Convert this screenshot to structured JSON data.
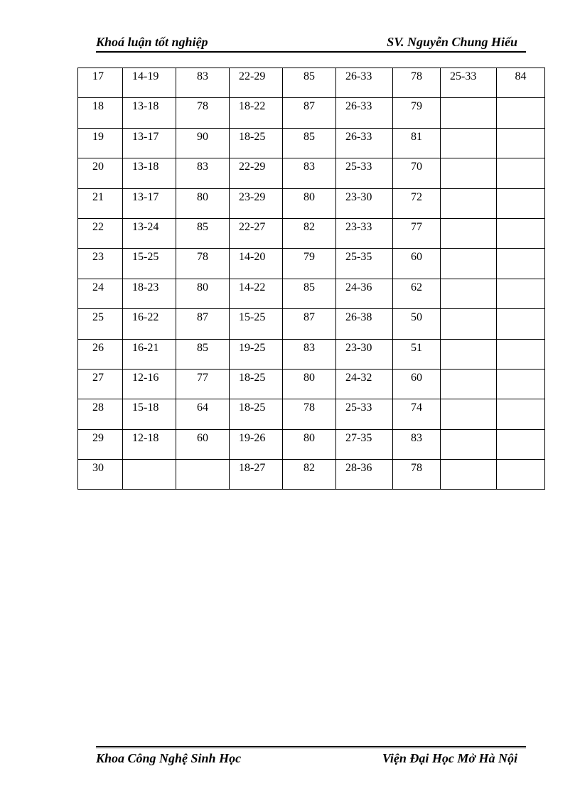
{
  "header": {
    "left": "Khoá luận tốt nghiệp",
    "right": "SV. Nguyễn Chung Hiếu"
  },
  "table": {
    "rows": [
      [
        "17",
        "14-19",
        "83",
        "22-29",
        "85",
        "26-33",
        "78",
        "25-33",
        "84"
      ],
      [
        "18",
        "13-18",
        "78",
        "18-22",
        "87",
        "26-33",
        "79",
        "",
        ""
      ],
      [
        "19",
        "13-17",
        "90",
        "18-25",
        "85",
        "26-33",
        "81",
        "",
        ""
      ],
      [
        "20",
        "13-18",
        "83",
        "22-29",
        "83",
        "25-33",
        "70",
        "",
        ""
      ],
      [
        "21",
        "13-17",
        "80",
        "23-29",
        "80",
        "23-30",
        "72",
        "",
        ""
      ],
      [
        "22",
        "13-24",
        "85",
        "22-27",
        "82",
        "23-33",
        "77",
        "",
        ""
      ],
      [
        "23",
        "15-25",
        "78",
        "14-20",
        "79",
        "25-35",
        "60",
        "",
        ""
      ],
      [
        "24",
        "18-23",
        "80",
        "14-22",
        "85",
        "24-36",
        "62",
        "",
        ""
      ],
      [
        "25",
        "16-22",
        "87",
        "15-25",
        "87",
        "26-38",
        "50",
        "",
        ""
      ],
      [
        "26",
        "16-21",
        "85",
        "19-25",
        "83",
        "23-30",
        "51",
        "",
        ""
      ],
      [
        "27",
        "12-16",
        "77",
        "18-25",
        "80",
        "24-32",
        "60",
        "",
        ""
      ],
      [
        "28",
        "15-18",
        "64",
        "18-25",
        "78",
        "25-33",
        "74",
        "",
        ""
      ],
      [
        "29",
        "12-18",
        "60",
        "19-26",
        "80",
        "27-35",
        "83",
        "",
        ""
      ],
      [
        "30",
        "",
        "",
        "18-27",
        "82",
        "28-36",
        "78",
        "",
        ""
      ]
    ]
  },
  "footer": {
    "left": "Khoa Công Nghệ Sinh Học",
    "right": "Viện Đại Học Mở Hà Nội"
  }
}
